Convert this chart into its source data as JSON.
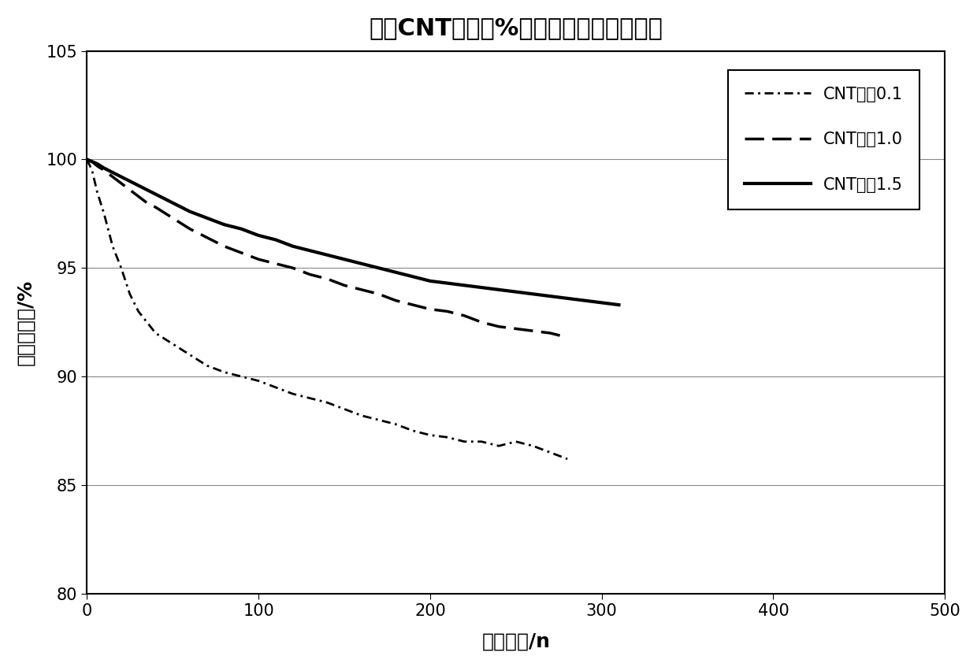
{
  "title": "不同CNT含量（%）电池循环性能测试图",
  "xlabel": "循环周数/n",
  "ylabel": "容量保持率/%",
  "xlim": [
    0,
    500
  ],
  "ylim": [
    80,
    105
  ],
  "yticks": [
    80,
    85,
    90,
    95,
    100,
    105
  ],
  "xticks": [
    0,
    100,
    200,
    300,
    400,
    500
  ],
  "legend_labels": [
    "CNT含量0.1",
    "CNT含量1.0",
    "CNT含量1.5"
  ],
  "series": {
    "cnt01": {
      "x": [
        0,
        3,
        6,
        10,
        15,
        20,
        25,
        30,
        35,
        40,
        50,
        60,
        70,
        80,
        90,
        100,
        110,
        120,
        130,
        140,
        150,
        160,
        170,
        180,
        190,
        200,
        210,
        220,
        230,
        240,
        250,
        260,
        270,
        280
      ],
      "y": [
        100.0,
        99.5,
        98.5,
        97.5,
        96.0,
        95.0,
        93.8,
        93.0,
        92.5,
        92.0,
        91.5,
        91.0,
        90.5,
        90.2,
        90.0,
        89.8,
        89.5,
        89.2,
        89.0,
        88.8,
        88.5,
        88.2,
        88.0,
        87.8,
        87.5,
        87.3,
        87.2,
        87.0,
        87.0,
        86.8,
        87.0,
        86.8,
        86.5,
        86.2
      ],
      "linestyle": "dashdot",
      "color": "#000000",
      "linewidth": 2.0
    },
    "cnt10": {
      "x": [
        0,
        3,
        6,
        10,
        15,
        20,
        25,
        30,
        35,
        40,
        50,
        60,
        70,
        80,
        90,
        100,
        110,
        120,
        130,
        140,
        150,
        160,
        170,
        180,
        190,
        200,
        210,
        220,
        230,
        240,
        250,
        260,
        270,
        280
      ],
      "y": [
        100.0,
        99.9,
        99.7,
        99.5,
        99.2,
        98.9,
        98.6,
        98.3,
        98.0,
        97.8,
        97.3,
        96.8,
        96.4,
        96.0,
        95.7,
        95.4,
        95.2,
        95.0,
        94.7,
        94.5,
        94.2,
        94.0,
        93.8,
        93.5,
        93.3,
        93.1,
        93.0,
        92.8,
        92.5,
        92.3,
        92.2,
        92.1,
        92.0,
        91.8
      ],
      "linestyle": "dashed",
      "color": "#000000",
      "linewidth": 2.5
    },
    "cnt15": {
      "x": [
        0,
        3,
        6,
        10,
        15,
        20,
        25,
        30,
        35,
        40,
        50,
        60,
        70,
        80,
        90,
        100,
        110,
        120,
        130,
        140,
        150,
        160,
        170,
        180,
        190,
        200,
        210,
        220,
        230,
        240,
        250,
        260,
        270,
        280,
        290,
        300,
        310
      ],
      "y": [
        100.0,
        99.9,
        99.8,
        99.6,
        99.4,
        99.2,
        99.0,
        98.8,
        98.6,
        98.4,
        98.0,
        97.6,
        97.3,
        97.0,
        96.8,
        96.5,
        96.3,
        96.0,
        95.8,
        95.6,
        95.4,
        95.2,
        95.0,
        94.8,
        94.6,
        94.4,
        94.3,
        94.2,
        94.1,
        94.0,
        93.9,
        93.8,
        93.7,
        93.6,
        93.5,
        93.4,
        93.3
      ],
      "linestyle": "solid",
      "color": "#000000",
      "linewidth": 3.0
    }
  }
}
